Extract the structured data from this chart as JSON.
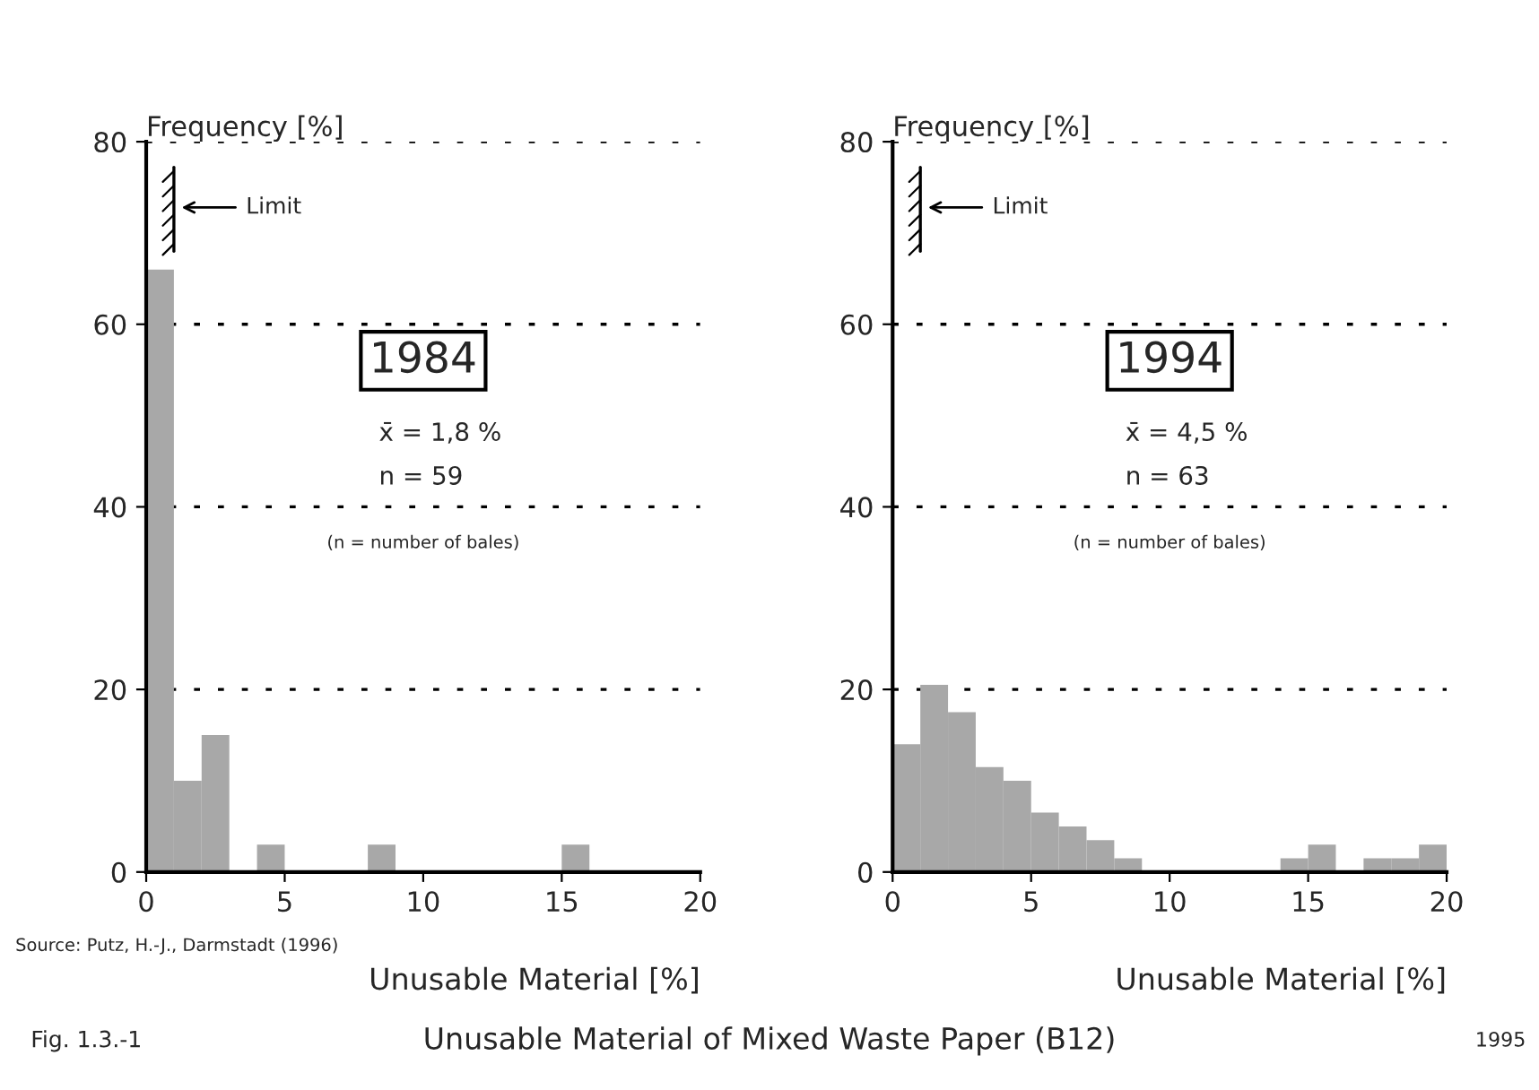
{
  "chart_data": [
    {
      "type": "histogram",
      "ylabel": "Frequency [%]",
      "xlabel": "Unusable Material [%]",
      "bins": [
        0,
        1,
        2,
        3,
        4,
        5,
        6,
        7,
        8,
        9,
        10,
        11,
        12,
        13,
        14,
        15,
        16,
        17,
        18,
        19,
        20
      ],
      "values": [
        66,
        10,
        15,
        0,
        3,
        0,
        0,
        0,
        3,
        0,
        0,
        0,
        0,
        0,
        0,
        3,
        0,
        0,
        0,
        0
      ],
      "color": "#a8a8a8",
      "xlim": [
        0,
        20
      ],
      "xticks": [
        0,
        5,
        10,
        15,
        20
      ],
      "ylim": [
        0,
        80
      ],
      "yticks": [
        0,
        20,
        40,
        60,
        80
      ],
      "grid": "y",
      "annotations": [
        "1984",
        "x̄ = 1,8 %",
        "n = 59",
        "(n = number of bales)",
        "Limit"
      ]
    },
    {
      "type": "histogram",
      "ylabel": "Frequency [%]",
      "xlabel": "Unusable Material [%]",
      "bins": [
        0,
        1,
        2,
        3,
        4,
        5,
        6,
        7,
        8,
        9,
        10,
        11,
        12,
        13,
        14,
        15,
        16,
        17,
        18,
        19,
        20
      ],
      "values": [
        14,
        20.5,
        17.5,
        11.5,
        10,
        6.5,
        5,
        3.5,
        1.5,
        0,
        0,
        0,
        0,
        0,
        1.5,
        3,
        0,
        1.5,
        1.5,
        3
      ],
      "color": "#a8a8a8",
      "xlim": [
        0,
        20
      ],
      "xticks": [
        0,
        5,
        10,
        15,
        20
      ],
      "ylim": [
        0,
        80
      ],
      "yticks": [
        0,
        20,
        40,
        60,
        80
      ],
      "grid": "y",
      "annotations": [
        "1994",
        "x̄ = 4,5 %",
        "n = 63",
        "(n = number of bales)",
        "Limit"
      ]
    },
    {
      "type": "other",
      "title": "Unusable Material of Mixed Waste Paper (B12)",
      "annotations": [
        "Source: Putz, H.-J., Darmstadt (1996)",
        "Fig. 1.3.-1",
        "1995"
      ]
    }
  ]
}
